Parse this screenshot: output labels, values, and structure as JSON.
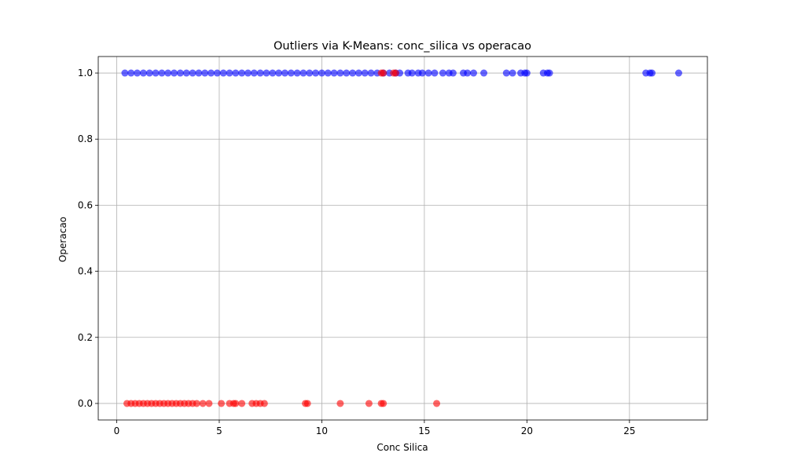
{
  "chart_data": {
    "type": "scatter",
    "title": "Outliers via K-Means: conc_silica vs operacao",
    "xlabel": "Conc Silica",
    "ylabel": "Operacao",
    "xlim": [
      -0.9,
      28.8
    ],
    "ylim": [
      -0.05,
      1.05
    ],
    "xticks": [
      0,
      5,
      10,
      15,
      20,
      25
    ],
    "yticks": [
      0.0,
      0.2,
      0.4,
      0.6,
      0.8,
      1.0
    ],
    "xtick_labels": [
      "0",
      "5",
      "10",
      "15",
      "20",
      "25"
    ],
    "ytick_labels": [
      "0.0",
      "0.2",
      "0.4",
      "0.6",
      "0.8",
      "1.0"
    ],
    "grid": true,
    "series": [
      {
        "color": "#0000ff",
        "x": [
          0.4,
          0.7,
          1.0,
          1.3,
          1.6,
          1.9,
          2.2,
          2.5,
          2.8,
          3.1,
          3.4,
          3.7,
          4.0,
          4.3,
          4.6,
          4.9,
          5.2,
          5.5,
          5.8,
          6.1,
          6.4,
          6.7,
          7.0,
          7.3,
          7.6,
          7.9,
          8.2,
          8.5,
          8.8,
          9.1,
          9.4,
          9.7,
          10.0,
          10.3,
          10.6,
          10.9,
          11.2,
          11.5,
          11.8,
          12.1,
          12.4,
          12.7,
          13.0,
          13.3,
          13.6,
          13.8,
          14.2,
          14.4,
          14.7,
          14.9,
          15.2,
          15.5,
          15.9,
          16.2,
          16.4,
          16.9,
          17.1,
          17.4,
          17.9,
          19.0,
          19.3,
          19.7,
          19.9,
          20.0,
          20.8,
          21.0,
          21.1,
          25.8,
          26.0,
          26.1,
          27.4
        ],
        "y": [
          1,
          1,
          1,
          1,
          1,
          1,
          1,
          1,
          1,
          1,
          1,
          1,
          1,
          1,
          1,
          1,
          1,
          1,
          1,
          1,
          1,
          1,
          1,
          1,
          1,
          1,
          1,
          1,
          1,
          1,
          1,
          1,
          1,
          1,
          1,
          1,
          1,
          1,
          1,
          1,
          1,
          1,
          1,
          1,
          1,
          1,
          1,
          1,
          1,
          1,
          1,
          1,
          1,
          1,
          1,
          1,
          1,
          1,
          1,
          1,
          1,
          1,
          1,
          1,
          1,
          1,
          1,
          1,
          1,
          1,
          1
        ]
      },
      {
        "color": "#ff0000",
        "x": [
          12.9,
          13.0,
          13.5,
          13.6,
          0.5,
          0.7,
          0.9,
          1.1,
          1.3,
          1.5,
          1.7,
          1.9,
          2.1,
          2.3,
          2.5,
          2.7,
          2.9,
          3.1,
          3.3,
          3.5,
          3.7,
          3.9,
          4.2,
          4.5,
          5.1,
          5.5,
          5.7,
          5.8,
          6.1,
          6.6,
          6.8,
          7.0,
          7.2,
          9.2,
          9.3,
          10.9,
          12.3,
          12.9,
          13.0,
          15.6
        ],
        "y": [
          1,
          1,
          1,
          1,
          0,
          0,
          0,
          0,
          0,
          0,
          0,
          0,
          0,
          0,
          0,
          0,
          0,
          0,
          0,
          0,
          0,
          0,
          0,
          0,
          0,
          0,
          0,
          0,
          0,
          0,
          0,
          0,
          0,
          0,
          0,
          0,
          0,
          0,
          0,
          0
        ]
      }
    ]
  }
}
